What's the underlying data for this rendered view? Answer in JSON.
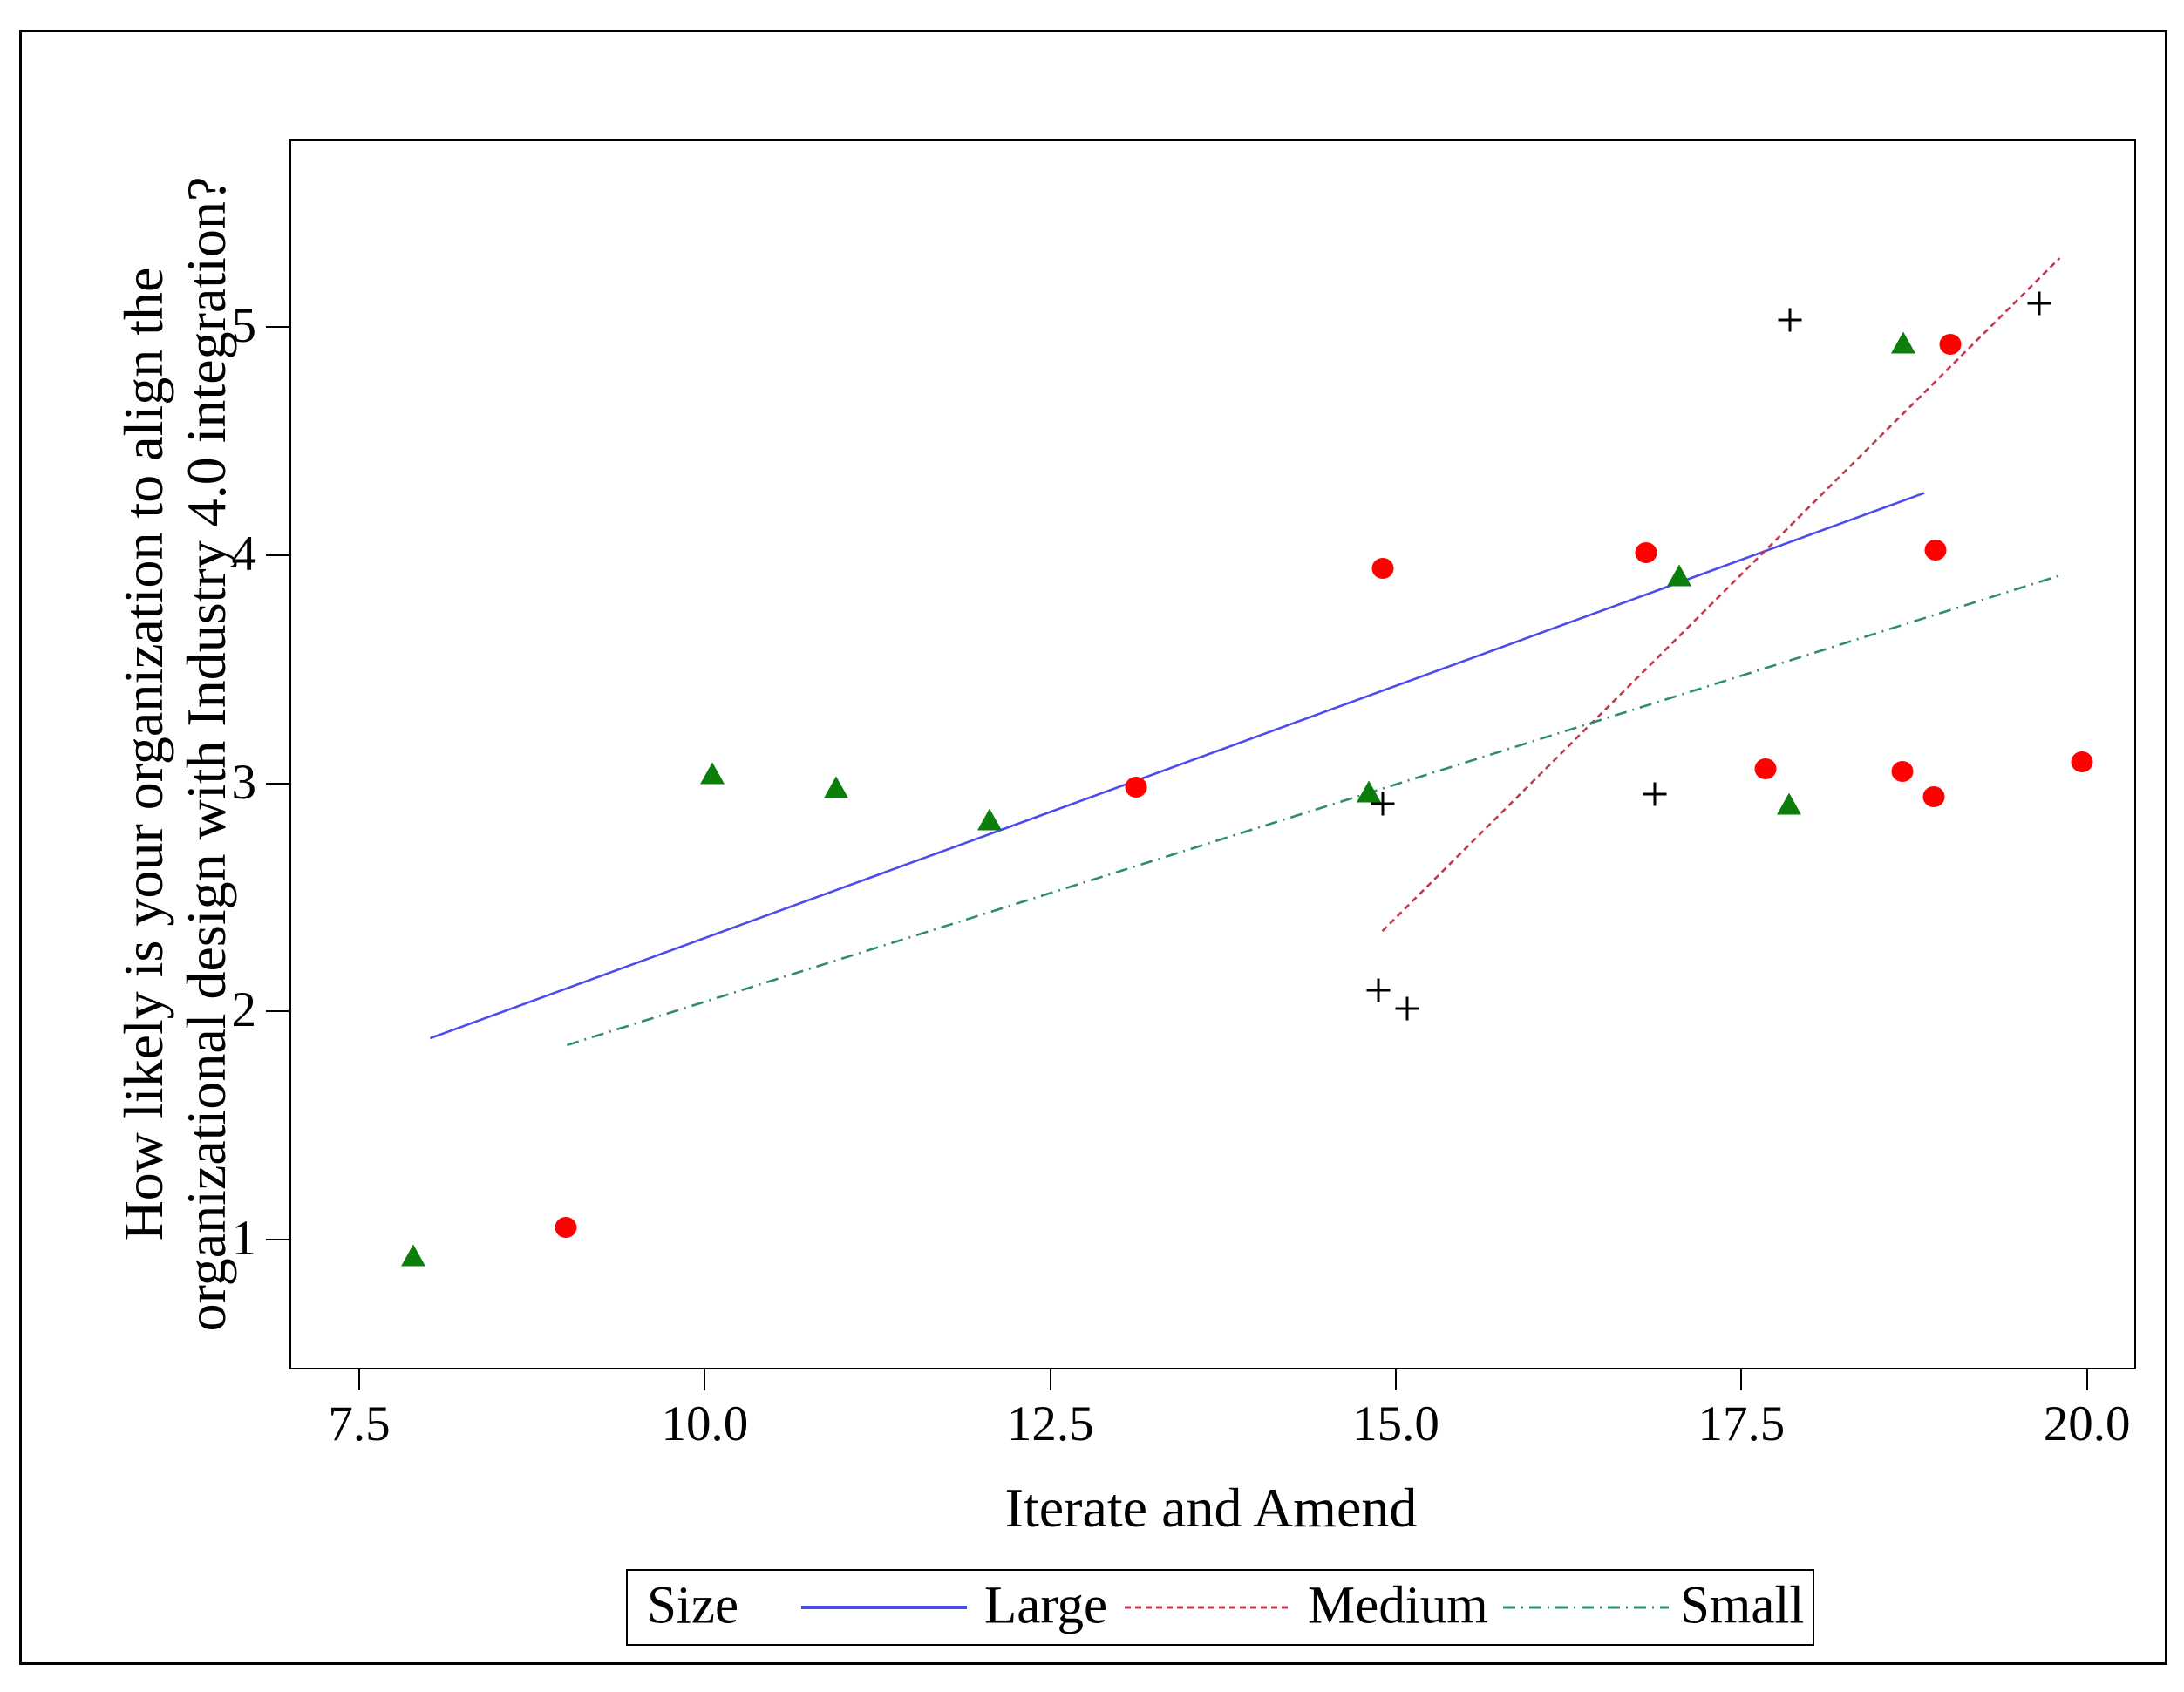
{
  "chart_data": {
    "type": "scatter",
    "title": "",
    "xlabel": "Iterate and Amend",
    "ylabel_lines": [
      "How likely is your organization to align the",
      "organizational design with Industry 4.0 integration?"
    ],
    "xlim": [
      6.995,
      20.33
    ],
    "ylim": [
      0.446,
      5.822
    ],
    "grid": false,
    "x_ticks": [
      {
        "value": 7.5,
        "label": "7.5"
      },
      {
        "value": 10.0,
        "label": "10.0"
      },
      {
        "value": 12.5,
        "label": "12.5"
      },
      {
        "value": 15.0,
        "label": "15.0"
      },
      {
        "value": 17.5,
        "label": "17.5"
      },
      {
        "value": 20.0,
        "label": "20.0"
      }
    ],
    "y_ticks": [
      {
        "value": 1,
        "label": "1"
      },
      {
        "value": 2,
        "label": "2"
      },
      {
        "value": 3,
        "label": "3"
      },
      {
        "value": 4,
        "label": "4"
      },
      {
        "value": 5,
        "label": "5"
      }
    ],
    "series": [
      {
        "name": "circle-markers",
        "marker": "circle",
        "color": "#fe0202",
        "points": [
          [
            8.98,
            1.06
          ],
          [
            13.11,
            2.99
          ],
          [
            14.89,
            3.95
          ],
          [
            16.8,
            4.02
          ],
          [
            17.66,
            3.07
          ],
          [
            18.65,
            3.06
          ],
          [
            19.0,
            4.93
          ],
          [
            18.89,
            4.03
          ],
          [
            18.88,
            2.95
          ],
          [
            19.95,
            3.1
          ]
        ]
      },
      {
        "name": "triangle-markers",
        "marker": "triangle",
        "color": "#0b7e0b",
        "points": [
          [
            7.88,
            0.94
          ],
          [
            10.04,
            3.05
          ],
          [
            10.94,
            2.99
          ],
          [
            12.05,
            2.85
          ],
          [
            14.79,
            2.97
          ],
          [
            17.04,
            3.92
          ],
          [
            17.83,
            2.92
          ],
          [
            18.66,
            4.94
          ]
        ]
      },
      {
        "name": "plus-markers",
        "marker": "plus",
        "color": "#000000",
        "points": [
          [
            14.89,
            2.92
          ],
          [
            14.86,
            2.1
          ],
          [
            15.07,
            2.02
          ],
          [
            16.86,
            2.96
          ],
          [
            17.84,
            5.04
          ],
          [
            19.64,
            5.11
          ]
        ]
      }
    ],
    "fit_lines": [
      {
        "name": "Large",
        "style": "solid",
        "color": "#4c4cee",
        "x1": 8.0,
        "y1": 1.89,
        "x2": 18.81,
        "y2": 4.28
      },
      {
        "name": "Medium",
        "style": "dashed",
        "color": "#c0394f",
        "x1": 14.89,
        "y1": 2.36,
        "x2": 19.79,
        "y2": 5.31
      },
      {
        "name": "Small",
        "style": "dashdot",
        "color": "#2f8c74",
        "x1": 8.99,
        "y1": 1.86,
        "x2": 19.8,
        "y2": 3.92
      }
    ],
    "legend": {
      "title": "Size",
      "position": "bottom",
      "entries": [
        {
          "label": "Large",
          "style": "solid",
          "color": "#4c4cee"
        },
        {
          "label": "Medium",
          "style": "dashed",
          "color": "#c0394f"
        },
        {
          "label": "Small",
          "style": "dashdot",
          "color": "#2f8c74"
        }
      ]
    }
  }
}
